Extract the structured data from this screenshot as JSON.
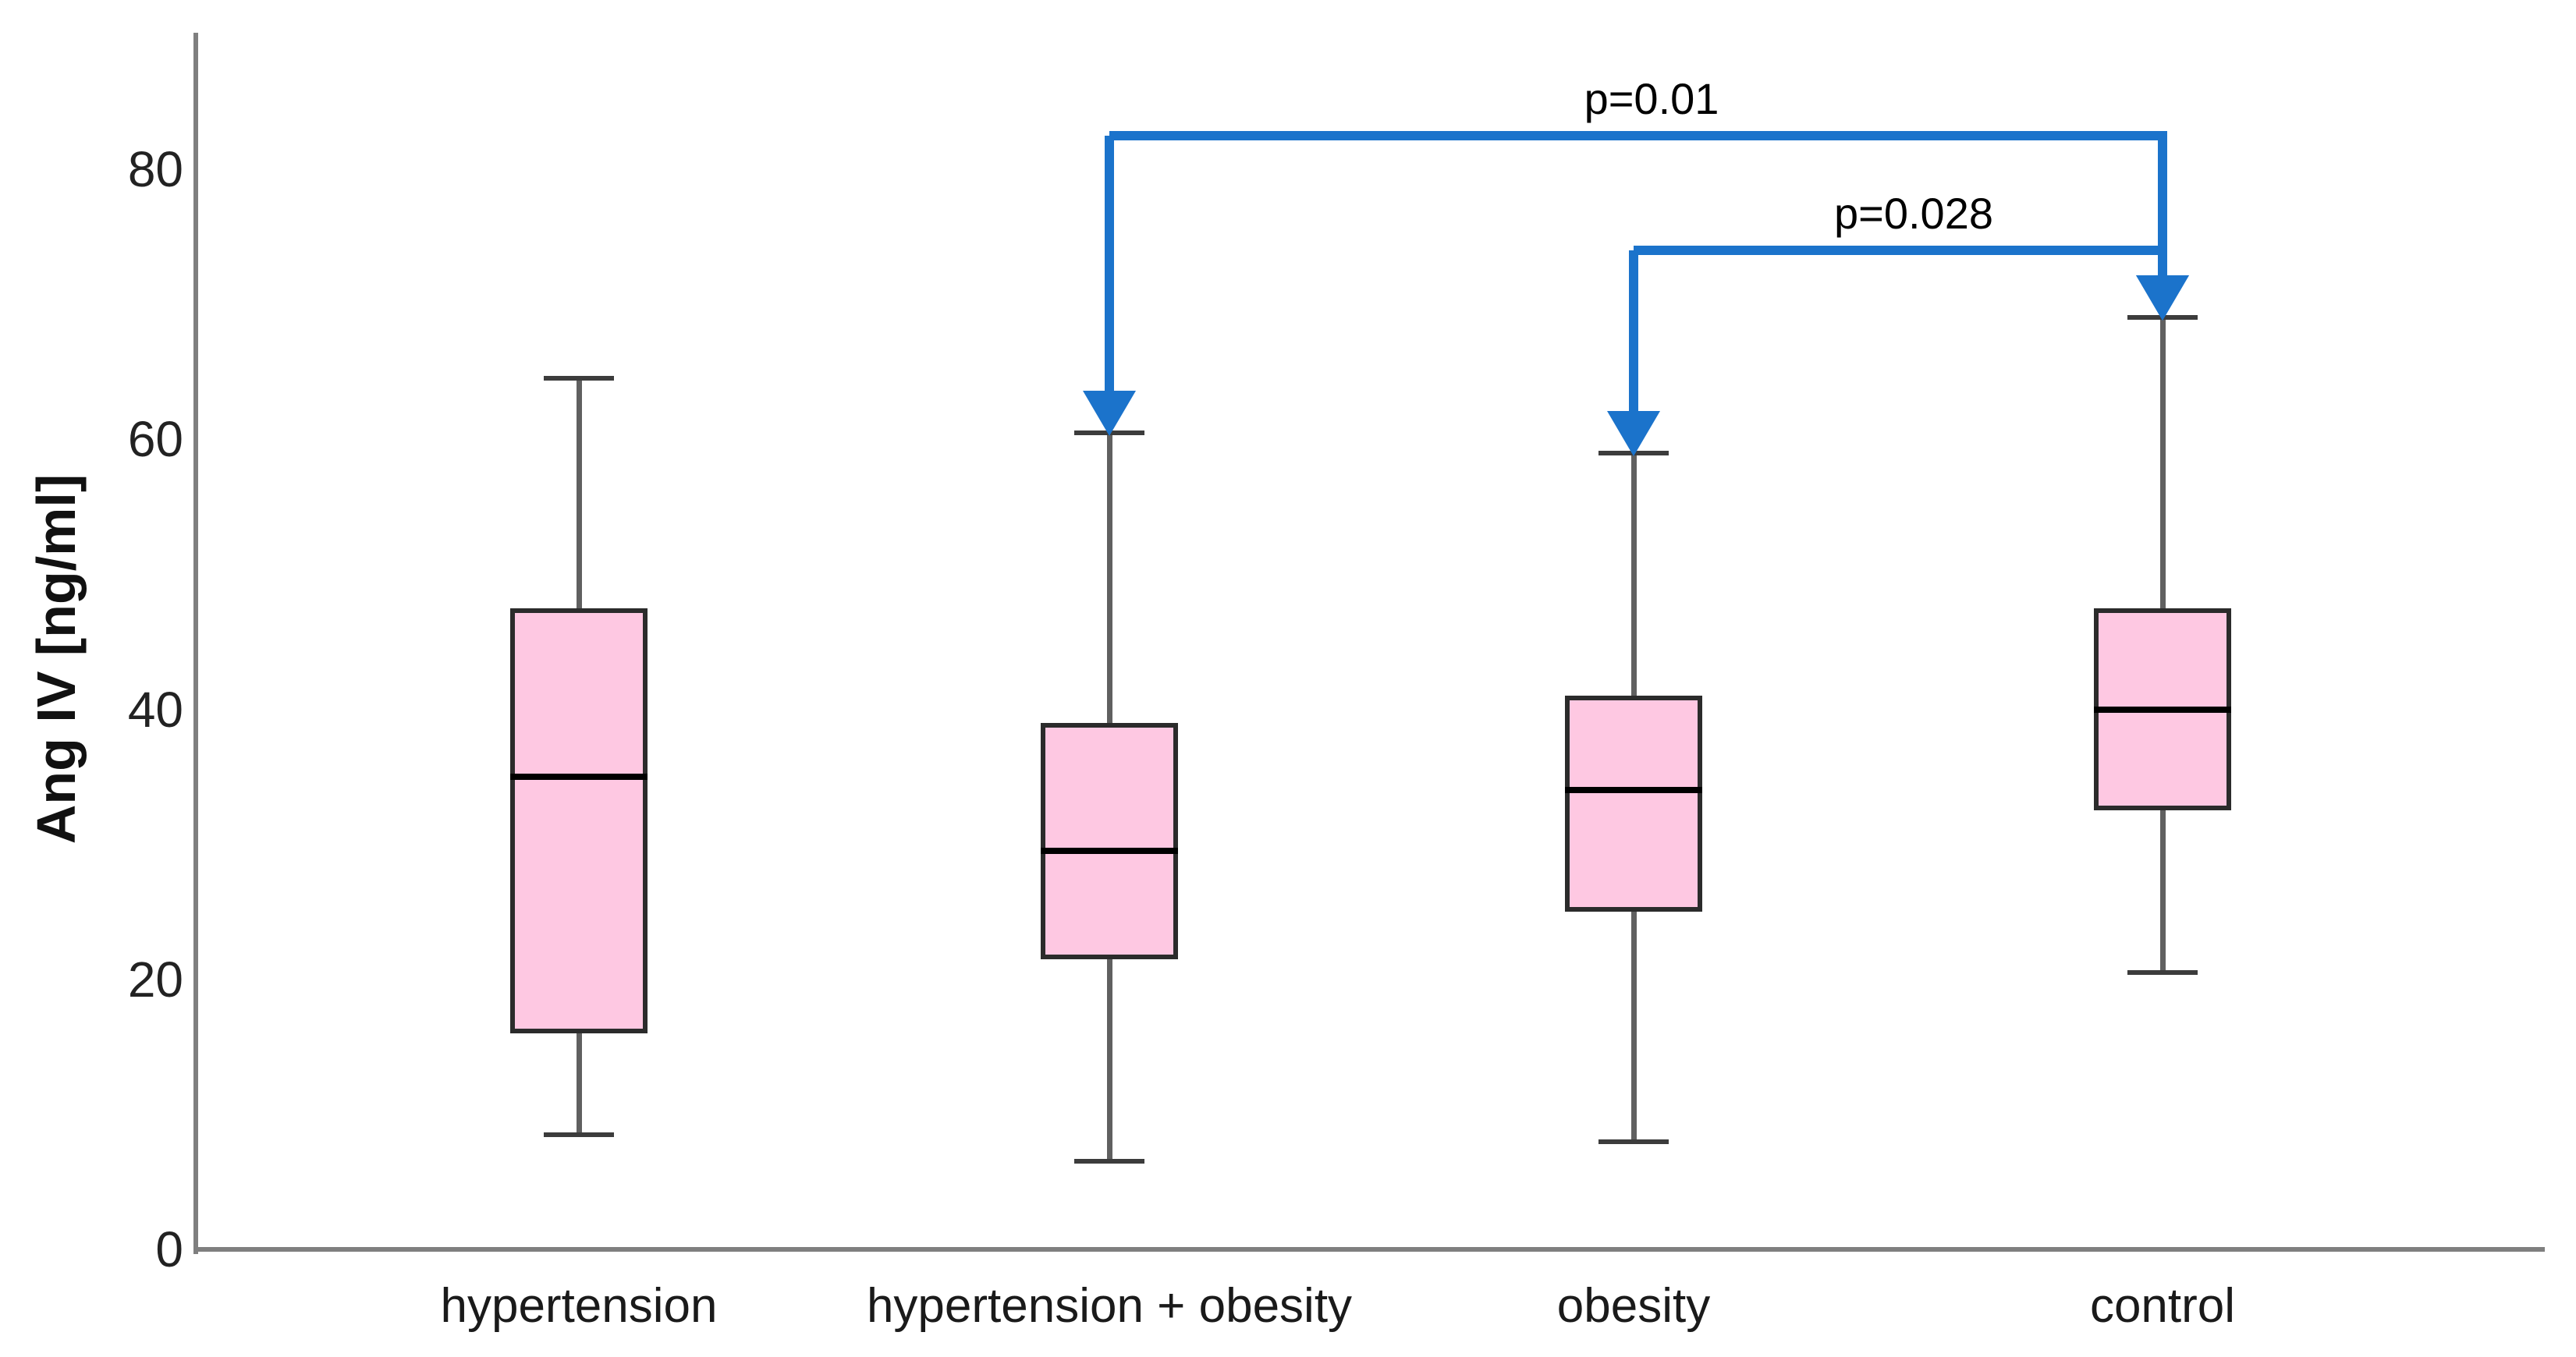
{
  "chart_data": {
    "type": "boxplot",
    "title": "",
    "ylabel": "Ang IV [ng/ml]",
    "xlabel": "",
    "ylim": [
      0,
      90
    ],
    "yticks": [
      0,
      20,
      40,
      60,
      80
    ],
    "grid": false,
    "legend": false,
    "categories": [
      "hypertension",
      "hypertension + obesity",
      "obesity",
      "control"
    ],
    "boxes": [
      {
        "category": "hypertension",
        "min": 8.5,
        "q1": 16,
        "median": 35,
        "q3": 47.5,
        "max": 64.5
      },
      {
        "category": "hypertension + obesity",
        "min": 6.5,
        "q1": 21.5,
        "median": 29.5,
        "q3": 39,
        "max": 60.5
      },
      {
        "category": "obesity",
        "min": 8,
        "q1": 25,
        "median": 34,
        "q3": 41,
        "max": 59
      },
      {
        "category": "control",
        "min": 20.5,
        "q1": 32.5,
        "median": 40,
        "q3": 47.5,
        "max": 69
      }
    ],
    "annotations": [
      {
        "label": "p=0.01",
        "from": "hypertension + obesity",
        "to": "control",
        "level": 82.5
      },
      {
        "label": "p=0.028",
        "from": "obesity",
        "to": "control",
        "level": 74
      }
    ],
    "colors": {
      "box_fill": "#FEC8E2",
      "box_border": "#2B2B2B",
      "median": "#000000",
      "whisker_stem": "#606060",
      "whisker_cap": "#3C3C3C",
      "axis": "#7F7F7F",
      "bracket": "#1B73CB",
      "text": "#1A1A1A"
    }
  }
}
